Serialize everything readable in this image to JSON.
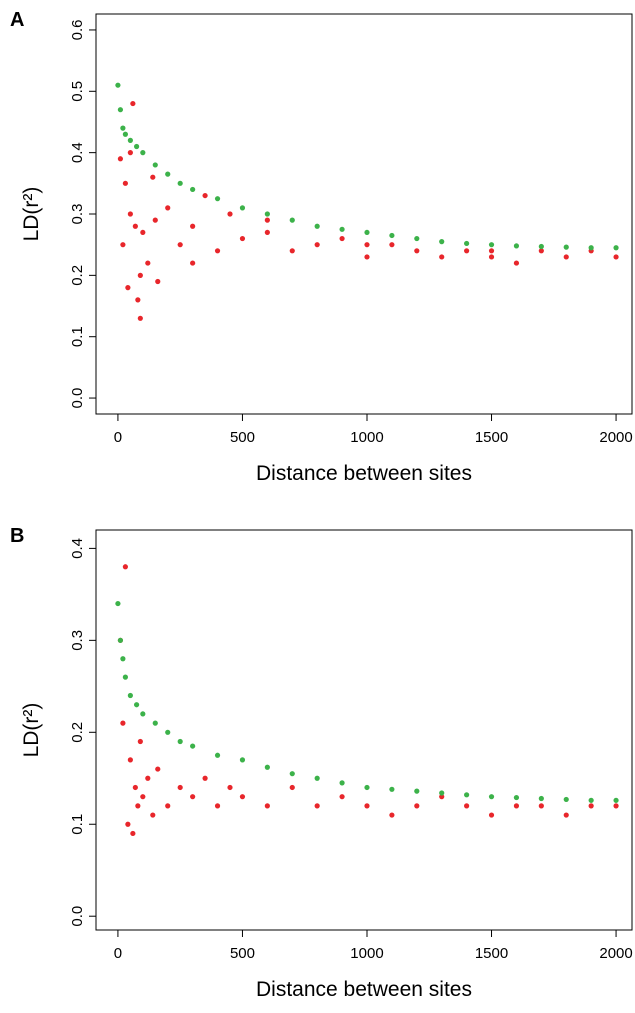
{
  "chart_data": [
    {
      "type": "scatter",
      "label": "A",
      "xlabel": "Distance between sites",
      "ylabel": "LD(r²)",
      "xlim": [
        -88,
        2064
      ],
      "ylim": [
        -0.026,
        0.626
      ],
      "xticks": [
        0,
        500,
        1000,
        1500,
        2000
      ],
      "yticks": [
        {
          "value": 0,
          "label": "0.0"
        },
        0.1,
        0.2,
        0.3,
        0.4,
        0.5,
        0.6
      ],
      "series": [
        {
          "color": "#e8262b",
          "x": [
            10,
            20,
            30,
            40,
            50,
            60,
            70,
            80,
            90,
            100,
            120,
            140,
            160,
            200,
            250,
            300,
            350,
            400,
            450,
            500,
            600,
            700,
            800,
            900,
            1000,
            1100,
            1200,
            1300,
            1400,
            1500,
            1600,
            1700,
            1800,
            1900,
            2000,
            50,
            90,
            150,
            300,
            600,
            1000,
            1500
          ],
          "y": [
            0.39,
            0.25,
            0.35,
            0.18,
            0.3,
            0.48,
            0.28,
            0.16,
            0.13,
            0.27,
            0.22,
            0.36,
            0.19,
            0.31,
            0.25,
            0.28,
            0.33,
            0.24,
            0.3,
            0.26,
            0.27,
            0.24,
            0.25,
            0.26,
            0.23,
            0.25,
            0.24,
            0.23,
            0.24,
            0.23,
            0.22,
            0.24,
            0.23,
            0.24,
            0.23,
            0.4,
            0.2,
            0.29,
            0.22,
            0.29,
            0.25,
            0.24
          ]
        },
        {
          "color": "#3cb24a",
          "x": [
            0,
            10,
            20,
            30,
            50,
            75,
            100,
            150,
            200,
            250,
            300,
            400,
            500,
            600,
            700,
            800,
            900,
            1000,
            1100,
            1200,
            1300,
            1400,
            1500,
            1600,
            1700,
            1800,
            1900,
            2000
          ],
          "y": [
            0.51,
            0.47,
            0.44,
            0.43,
            0.42,
            0.41,
            0.4,
            0.38,
            0.365,
            0.35,
            0.34,
            0.325,
            0.31,
            0.3,
            0.29,
            0.28,
            0.275,
            0.27,
            0.265,
            0.26,
            0.255,
            0.252,
            0.25,
            0.248,
            0.247,
            0.246,
            0.245,
            0.245
          ]
        }
      ]
    },
    {
      "type": "scatter",
      "label": "B",
      "xlabel": "Distance between sites",
      "ylabel": "LD(r²)",
      "xlim": [
        -88,
        2064
      ],
      "ylim": [
        -0.015,
        0.42
      ],
      "xticks": [
        0,
        500,
        1000,
        1500,
        2000
      ],
      "yticks": [
        {
          "value": 0,
          "label": "0.0"
        },
        0.1,
        0.2,
        0.3,
        0.4
      ],
      "series": [
        {
          "color": "#e8262b",
          "x": [
            10,
            20,
            30,
            40,
            50,
            60,
            70,
            80,
            90,
            100,
            120,
            140,
            160,
            200,
            250,
            300,
            350,
            400,
            450,
            500,
            600,
            700,
            800,
            900,
            1000,
            1100,
            1200,
            1300,
            1400,
            1500,
            1600,
            1700,
            1800,
            1900,
            2000
          ],
          "y": [
            0.3,
            0.21,
            0.38,
            0.1,
            0.17,
            0.09,
            0.14,
            0.12,
            0.19,
            0.13,
            0.15,
            0.11,
            0.16,
            0.12,
            0.14,
            0.13,
            0.15,
            0.12,
            0.14,
            0.13,
            0.12,
            0.14,
            0.12,
            0.13,
            0.12,
            0.11,
            0.12,
            0.13,
            0.12,
            0.11,
            0.12,
            0.12,
            0.11,
            0.12,
            0.12
          ]
        },
        {
          "color": "#3cb24a",
          "x": [
            0,
            10,
            20,
            30,
            50,
            75,
            100,
            150,
            200,
            250,
            300,
            400,
            500,
            600,
            700,
            800,
            900,
            1000,
            1100,
            1200,
            1300,
            1400,
            1500,
            1600,
            1700,
            1800,
            1900,
            2000
          ],
          "y": [
            0.34,
            0.3,
            0.28,
            0.26,
            0.24,
            0.23,
            0.22,
            0.21,
            0.2,
            0.19,
            0.185,
            0.175,
            0.17,
            0.162,
            0.155,
            0.15,
            0.145,
            0.14,
            0.138,
            0.136,
            0.134,
            0.132,
            0.13,
            0.129,
            0.128,
            0.127,
            0.126,
            0.126
          ]
        }
      ]
    }
  ]
}
